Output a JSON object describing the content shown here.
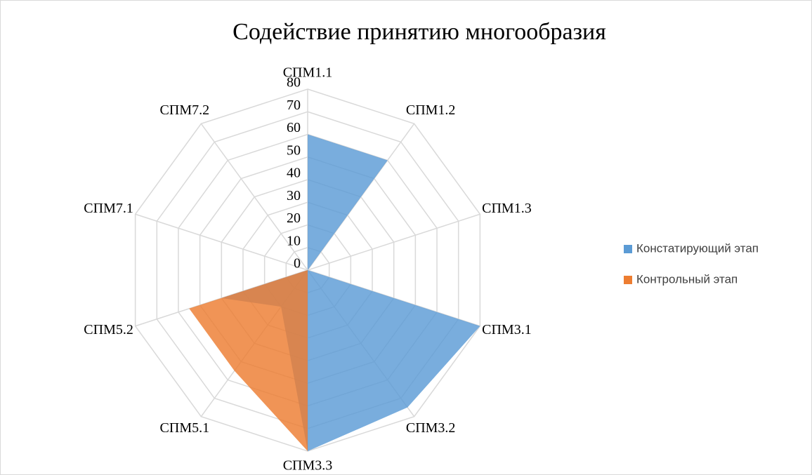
{
  "chart_data": {
    "type": "radar",
    "title": "Содействие принятию многообразия",
    "categories": [
      "СПМ1.1",
      "СПМ1.2",
      "СПМ1.3",
      "СПМ3.1",
      "СПМ3.2",
      "СПМ3.3",
      "СПМ5.1",
      "СПМ5.2",
      "СПМ7.1",
      "СПМ7.2"
    ],
    "series": [
      {
        "name": "Констатирующий этап",
        "color": "#5b9bd5",
        "values": [
          60,
          60,
          0,
          80,
          75,
          80,
          20,
          40,
          0,
          0
        ]
      },
      {
        "name": "Контрольный этап",
        "color": "#ed7d31",
        "values": [
          0,
          0,
          0,
          0,
          0,
          80,
          55,
          55,
          0,
          0
        ]
      }
    ],
    "ylim": [
      0,
      80
    ],
    "yticks": [
      0,
      10,
      20,
      30,
      40,
      50,
      60,
      70,
      80
    ],
    "grid": true,
    "legend": "right"
  }
}
